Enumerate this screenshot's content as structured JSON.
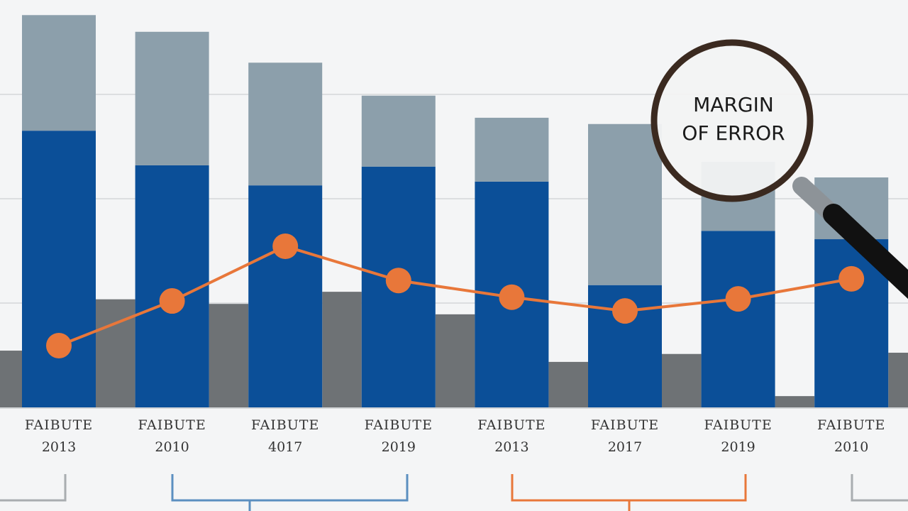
{
  "chart_data": {
    "type": "bar",
    "categories": [
      "2013",
      "2010",
      "4017",
      "2019",
      "2013",
      "2017",
      "2019",
      "2010"
    ],
    "category_captions": [
      "FAIBUTE",
      "FAIBUTE",
      "FAIBUTE",
      "FAIBUTE",
      "FAIBUTE",
      "FAIBUTE",
      "FAIBUTE",
      "FAIBUTE"
    ],
    "series": [
      {
        "type": "bar",
        "color": "#0b4f98",
        "values": [
          66.3,
          58.0,
          53.2,
          57.7,
          54.1,
          29.3,
          42.3,
          40.3
        ]
      },
      {
        "type": "error",
        "color": "#8c9fab",
        "values": [
          27.7,
          32.0,
          29.4,
          17.0,
          15.3,
          38.6,
          16.5,
          14.8
        ]
      },
      {
        "type": "line",
        "color": "#e8773a",
        "values": [
          14.8,
          25.5,
          38.6,
          30.4,
          26.4,
          23.1,
          26.0,
          30.8
        ]
      }
    ],
    "between_bars": {
      "color": "#6e7275",
      "values": [
        13.6,
        25.9,
        24.8,
        27.7,
        22.3,
        10.9,
        12.8,
        2.7,
        13.1
      ]
    },
    "annotation": [
      "MARGIN",
      "OF ERROR"
    ],
    "ylim": [
      0,
      100
    ],
    "yticks": [
      25,
      50,
      75
    ],
    "grid": true
  }
}
